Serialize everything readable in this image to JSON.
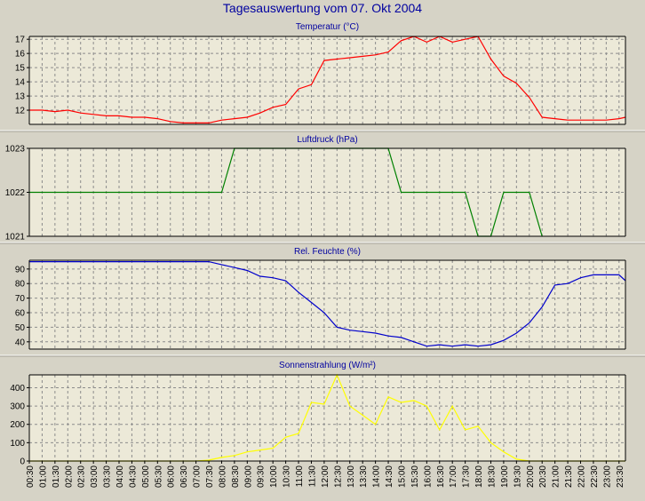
{
  "window": {
    "title": "Tagesauswertung vom 07. Okt 2004"
  },
  "colors": {
    "background": "#d6d3c6",
    "plot_background": "#ece9d8",
    "grid": "#8c8c8c",
    "title": "#0000a0"
  },
  "x_tick_labels": [
    "00:30",
    "01:00",
    "01:30",
    "02:00",
    "02:30",
    "03:00",
    "03:30",
    "04:00",
    "04:30",
    "05:00",
    "05:30",
    "06:00",
    "06:30",
    "07:00",
    "07:30",
    "08:00",
    "08:30",
    "09:00",
    "09:30",
    "10:00",
    "10:30",
    "11:00",
    "11:30",
    "12:00",
    "12:30",
    "13:00",
    "13:30",
    "14:00",
    "14:30",
    "15:00",
    "15:30",
    "16:00",
    "16:30",
    "17:00",
    "17:30",
    "18:00",
    "18:30",
    "19:00",
    "19:30",
    "20:00",
    "20:30",
    "21:00",
    "21:30",
    "22:00",
    "22:30",
    "23:00",
    "23:30"
  ],
  "chart_data": [
    {
      "type": "line",
      "title": "Temperatur (°C)",
      "color": "#ff0000",
      "ylim": [
        11,
        17.2
      ],
      "yticks": [
        12,
        13,
        14,
        15,
        16,
        17
      ],
      "xlim": [
        0.5,
        23.75
      ],
      "grid": true,
      "x": [
        0.5,
        1.0,
        1.5,
        2.0,
        2.5,
        3.0,
        3.5,
        4.0,
        4.5,
        5.0,
        5.5,
        6.0,
        6.5,
        7.0,
        7.5,
        8.0,
        8.5,
        9.0,
        9.5,
        10.0,
        10.5,
        11.0,
        11.5,
        12.0,
        12.5,
        13.0,
        13.5,
        14.0,
        14.5,
        15.0,
        15.5,
        16.0,
        16.5,
        17.0,
        17.5,
        18.0,
        18.5,
        19.0,
        19.5,
        20.0,
        20.5,
        21.0,
        21.5,
        22.0,
        22.5,
        23.0,
        23.5,
        23.75
      ],
      "y": [
        12.0,
        12.0,
        11.9,
        12.0,
        11.8,
        11.7,
        11.6,
        11.6,
        11.5,
        11.5,
        11.4,
        11.2,
        11.1,
        11.1,
        11.1,
        11.3,
        11.4,
        11.5,
        11.8,
        12.2,
        12.4,
        13.5,
        13.8,
        15.5,
        15.6,
        15.7,
        15.8,
        15.9,
        16.1,
        16.9,
        17.2,
        16.8,
        17.2,
        16.8,
        17.0,
        17.2,
        15.6,
        14.4,
        13.9,
        12.9,
        11.5,
        11.4,
        11.3,
        11.3,
        11.3,
        11.3,
        11.4,
        11.5
      ]
    },
    {
      "type": "line",
      "title": "Luftdruck (hPa)",
      "color": "#008000",
      "ylim": [
        1021,
        1023
      ],
      "yticks": [
        1021,
        1022,
        1023
      ],
      "xlim": [
        0.5,
        23.75
      ],
      "grid": true,
      "x": [
        0.5,
        1.0,
        2.0,
        3.0,
        4.0,
        5.0,
        6.0,
        7.0,
        8.0,
        8.5,
        9.0,
        10.0,
        11.0,
        12.0,
        13.0,
        14.0,
        14.5,
        15.0,
        16.0,
        17.0,
        17.5,
        18.0,
        18.5,
        19.0,
        19.5,
        20.0,
        20.5
      ],
      "y": [
        1022,
        1022,
        1022,
        1022,
        1022,
        1022,
        1022,
        1022,
        1022,
        1023,
        1023,
        1023,
        1023,
        1023,
        1023,
        1023,
        1023,
        1022,
        1022,
        1022,
        1022,
        1021,
        1021,
        1022,
        1022,
        1022,
        1021
      ]
    },
    {
      "type": "line",
      "title": "Rel. Feuchte (%)",
      "color": "#0000cc",
      "ylim": [
        35,
        96
      ],
      "yticks": [
        40,
        50,
        60,
        70,
        80,
        90
      ],
      "xlim": [
        0.5,
        23.75
      ],
      "grid": true,
      "x": [
        0.5,
        1.0,
        1.5,
        2.0,
        2.5,
        3.0,
        3.5,
        4.0,
        4.5,
        5.0,
        5.5,
        6.0,
        6.5,
        7.0,
        7.5,
        8.0,
        8.5,
        9.0,
        9.5,
        10.0,
        10.5,
        11.0,
        11.5,
        12.0,
        12.5,
        13.0,
        13.5,
        14.0,
        14.5,
        15.0,
        15.5,
        16.0,
        16.5,
        17.0,
        17.5,
        18.0,
        18.5,
        19.0,
        19.5,
        20.0,
        20.5,
        21.0,
        21.5,
        22.0,
        22.5,
        23.0,
        23.5,
        23.75
      ],
      "y": [
        95,
        95,
        95,
        95,
        95,
        95,
        95,
        95,
        95,
        95,
        95,
        95,
        95,
        95,
        95,
        93,
        91,
        89,
        85,
        84,
        82,
        74,
        67,
        60,
        50,
        48,
        47,
        46,
        44,
        43,
        40,
        37,
        38,
        37,
        38,
        37,
        38,
        41,
        46,
        53,
        64,
        79,
        80,
        84,
        86,
        86,
        86,
        82
      ]
    },
    {
      "type": "line",
      "title": "Sonnenstrahlung (W/m²)",
      "color": "#ffff00",
      "ylim": [
        0,
        470
      ],
      "yticks": [
        0,
        100,
        200,
        300,
        400
      ],
      "xlim": [
        0.5,
        23.75
      ],
      "grid": true,
      "x": [
        0.5,
        1.0,
        2.0,
        3.0,
        4.0,
        5.0,
        6.0,
        7.0,
        7.5,
        8.0,
        8.5,
        9.0,
        9.5,
        10.0,
        10.5,
        11.0,
        11.5,
        12.0,
        12.5,
        13.0,
        13.5,
        14.0,
        14.5,
        15.0,
        15.5,
        16.0,
        16.5,
        17.0,
        17.5,
        18.0,
        18.5,
        19.0,
        19.5,
        20.0,
        21.0,
        22.0,
        23.0,
        23.75
      ],
      "y": [
        0,
        0,
        0,
        0,
        0,
        0,
        0,
        0,
        5,
        20,
        30,
        50,
        60,
        70,
        130,
        150,
        320,
        310,
        470,
        300,
        250,
        200,
        350,
        320,
        330,
        300,
        170,
        300,
        170,
        190,
        100,
        50,
        10,
        0,
        0,
        0,
        0,
        0
      ]
    }
  ]
}
